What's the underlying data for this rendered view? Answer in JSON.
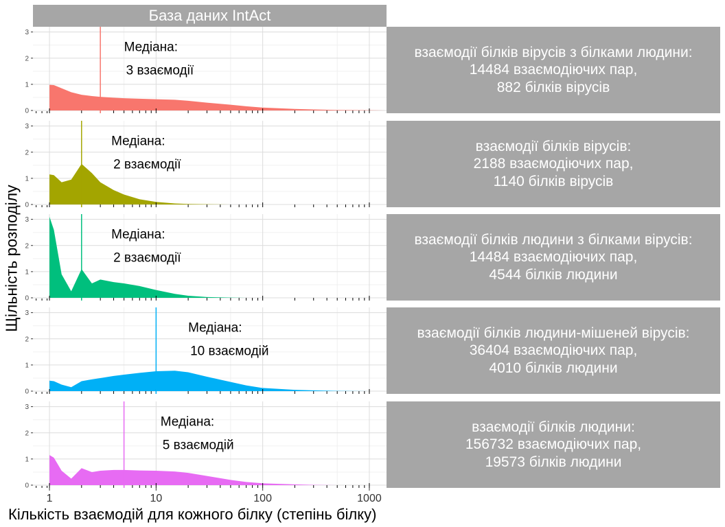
{
  "chart_data": {
    "type": "area",
    "title": "База даних IntAct",
    "xlabel": "Кількість взаємодій для кожного білку (степінь білку)",
    "ylabel": "Щільність розподілу",
    "x_scale": "log10",
    "xlim": [
      0.7,
      1450
    ],
    "ylim": [
      0,
      3.2
    ],
    "x_ticks": [
      1,
      10,
      100,
      1000
    ],
    "x_tick_labels": [
      "1",
      "10",
      "100",
      "1000"
    ],
    "y_ticks": [
      0,
      1,
      2,
      3
    ],
    "y_tick_labels": [
      "0",
      "1",
      "2",
      "3"
    ],
    "grid": true,
    "legend": "none",
    "x": [
      1,
      1.1,
      1.3,
      1.6,
      2,
      2.5,
      3,
      4,
      5,
      7,
      10,
      15,
      20,
      30,
      50,
      70,
      100,
      200,
      300,
      500,
      1000,
      1400
    ],
    "panels": [
      {
        "strip": [
          "взаємодії білків вірусів з білками людини:",
          "14484 взаємодіючих пар,",
          "882 білків вірусів"
        ],
        "color": "#f8766d",
        "median": 3,
        "median_label": [
          "Медіана:",
          "3 взаємодії"
        ],
        "density": [
          0.98,
          0.97,
          0.85,
          0.7,
          0.6,
          0.55,
          0.52,
          0.49,
          0.47,
          0.45,
          0.43,
          0.41,
          0.37,
          0.3,
          0.22,
          0.16,
          0.11,
          0.06,
          0.04,
          0.02,
          0.01,
          0.0
        ]
      },
      {
        "strip": [
          "взаємодії білків вірусів:",
          "2188 взаємодіючих пар,",
          "1140 білків вірусів"
        ],
        "color": "#a3a500",
        "median": 2,
        "median_label": [
          "Медіана:",
          "2 взаємодії"
        ],
        "density": [
          1.15,
          1.12,
          0.85,
          0.95,
          1.55,
          1.2,
          0.85,
          0.55,
          0.38,
          0.2,
          0.1,
          0.04,
          0.02,
          0.01,
          0.0,
          0.0,
          0.0,
          0.0,
          0.0,
          0.0,
          0.0,
          0.0
        ]
      },
      {
        "strip": [
          "взаємодії білків людини з білками вірусів:",
          "14484 взаємодіючих пар,",
          "4544 білків людини"
        ],
        "color": "#00bf7d",
        "median": 2,
        "median_label": [
          "Медіана:",
          "2 взаємодії"
        ],
        "density": [
          3.1,
          2.6,
          0.9,
          0.25,
          1.1,
          0.55,
          0.7,
          0.6,
          0.55,
          0.45,
          0.3,
          0.15,
          0.08,
          0.03,
          0.01,
          0.0,
          0.0,
          0.0,
          0.0,
          0.0,
          0.0,
          0.0
        ]
      },
      {
        "strip": [
          "взаємодії білків людини-мішеней вірусів:",
          "36404 взаємодіючих пар,",
          "4010 білків людини"
        ],
        "color": "#00b0f6",
        "median": 10,
        "median_label": [
          "Медіана:",
          "10 взаємодій"
        ],
        "density": [
          0.4,
          0.38,
          0.25,
          0.15,
          0.38,
          0.45,
          0.5,
          0.58,
          0.63,
          0.7,
          0.76,
          0.78,
          0.72,
          0.55,
          0.35,
          0.22,
          0.12,
          0.05,
          0.03,
          0.01,
          0.0,
          0.0
        ]
      },
      {
        "strip": [
          "взаємодії білків людини:",
          "156732 взаємодіючих пар,",
          "19573 білків людини"
        ],
        "color": "#e76bf3",
        "median": 5,
        "median_label": [
          "Медіана:",
          "5 взаємодій"
        ],
        "density": [
          1.15,
          1.05,
          0.55,
          0.25,
          0.65,
          0.5,
          0.55,
          0.58,
          0.58,
          0.56,
          0.55,
          0.52,
          0.47,
          0.35,
          0.2,
          0.12,
          0.07,
          0.03,
          0.01,
          0.0,
          0.0,
          0.0
        ]
      }
    ]
  }
}
